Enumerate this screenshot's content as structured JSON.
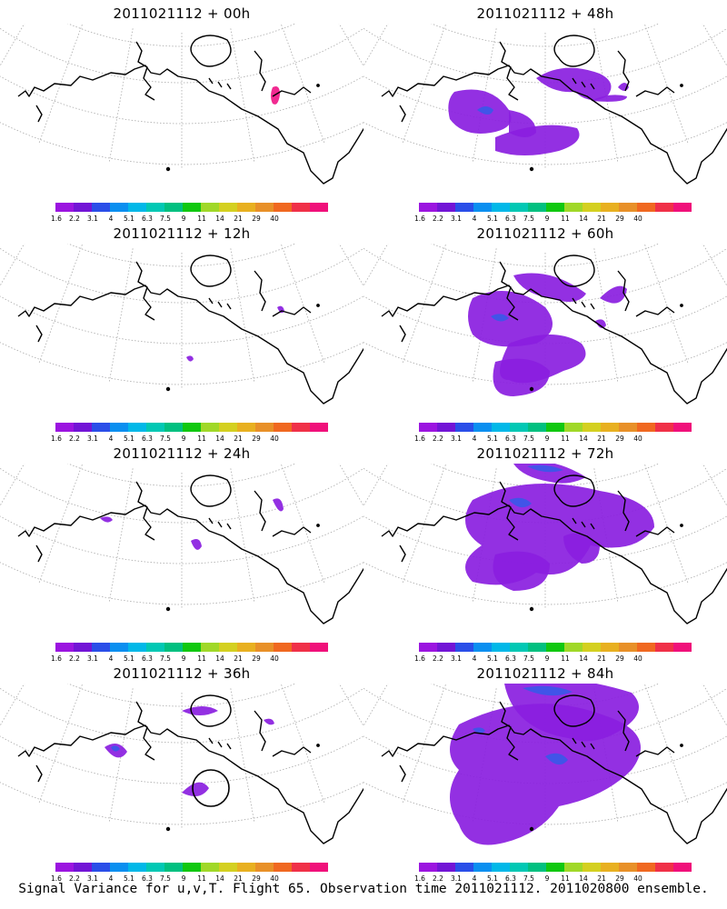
{
  "panels": [
    {
      "title": "2011021112 + 00h",
      "col": 0,
      "row": 0
    },
    {
      "title": "2011021112 + 48h",
      "col": 1,
      "row": 0
    },
    {
      "title": "2011021112 + 12h",
      "col": 0,
      "row": 1
    },
    {
      "title": "2011021112 + 60h",
      "col": 1,
      "row": 1
    },
    {
      "title": "2011021112 + 24h",
      "col": 0,
      "row": 2
    },
    {
      "title": "2011021112 + 72h",
      "col": 1,
      "row": 2
    },
    {
      "title": "2011021112 + 36h",
      "col": 0,
      "row": 3
    },
    {
      "title": "2011021112 + 84h",
      "col": 1,
      "row": 3
    }
  ],
  "colorbar": {
    "colors": [
      "#9b14e0",
      "#7214d6",
      "#2a4ee8",
      "#0a8ff0",
      "#00b8e8",
      "#00c8b4",
      "#00c080",
      "#10c810",
      "#a0d828",
      "#d4d020",
      "#e8b020",
      "#e89028",
      "#f06820",
      "#f03048",
      "#f0107a"
    ],
    "labels": [
      "1.6",
      "2.2",
      "3.1",
      "4",
      "5.1",
      "6.3",
      "7.5",
      "9",
      "11",
      "14",
      "21",
      "29",
      "40"
    ]
  },
  "footer": "Signal Variance for u,v,T. Flight 65. Observation time 2011021112. 2011020800 ensemble."
}
